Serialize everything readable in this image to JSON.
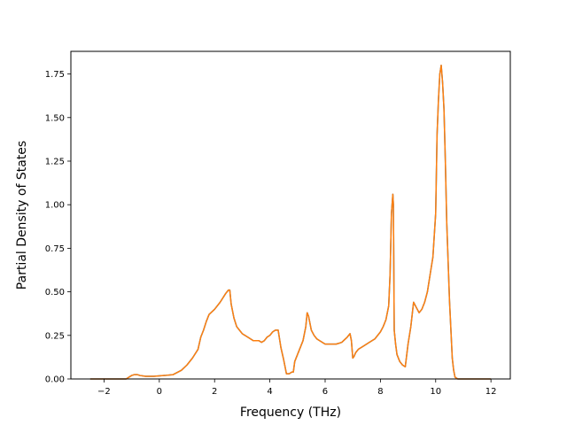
{
  "chart_data": {
    "type": "line",
    "title": "",
    "xlabel": "Frequency (THz)",
    "ylabel": "Partial Density of States",
    "xlim": [
      -3.2,
      12.7
    ],
    "ylim": [
      0,
      1.88
    ],
    "grid": false,
    "legend": "none",
    "x_ticks": [
      -2,
      0,
      2,
      4,
      6,
      8,
      10,
      12
    ],
    "x_tick_labels": [
      "−2",
      "0",
      "2",
      "4",
      "6",
      "8",
      "10",
      "12"
    ],
    "y_ticks": [
      0,
      0.25,
      0.5,
      0.75,
      1.0,
      1.25,
      1.5,
      1.75
    ],
    "y_tick_labels": [
      "0.00",
      "0.25",
      "0.50",
      "0.75",
      "1.00",
      "1.25",
      "1.50",
      "1.75"
    ],
    "series": [
      {
        "color": "#1f77b4",
        "x": [
          -2.5,
          -1.2,
          -1.1,
          -1.0,
          -0.9,
          -0.8,
          -0.7,
          -0.5,
          -0.2,
          0.2,
          0.5,
          0.8,
          1.0,
          1.2,
          1.4,
          1.5,
          1.6,
          1.7,
          1.8,
          2.0,
          2.2,
          2.4,
          2.5,
          2.55,
          2.6,
          2.7,
          2.8,
          2.9,
          3.0,
          3.2,
          3.4,
          3.6,
          3.7,
          3.8,
          3.9,
          4.0,
          4.1,
          4.2,
          4.3,
          4.4,
          4.5,
          4.6,
          4.7,
          4.8,
          4.85,
          4.9,
          5.0,
          5.1,
          5.2,
          5.3,
          5.35,
          5.4,
          5.5,
          5.6,
          5.7,
          5.8,
          6.0,
          6.2,
          6.4,
          6.6,
          6.8,
          6.9,
          6.95,
          7.0,
          7.05,
          7.1,
          7.2,
          7.4,
          7.6,
          7.8,
          8.0,
          8.1,
          8.2,
          8.3,
          8.35,
          8.4,
          8.45,
          8.47,
          8.5,
          8.55,
          8.6,
          8.7,
          8.8,
          8.9,
          9.0,
          9.1,
          9.2,
          9.3,
          9.4,
          9.5,
          9.6,
          9.7,
          9.8,
          9.9,
          10.0,
          10.05,
          10.1,
          10.15,
          10.2,
          10.25,
          10.3,
          10.35,
          10.4,
          10.5,
          10.6,
          10.65,
          10.7,
          10.8,
          11.0,
          11.5,
          12.0
        ],
        "y": [
          0,
          0,
          0.01,
          0.02,
          0.025,
          0.025,
          0.02,
          0.015,
          0.015,
          0.02,
          0.025,
          0.05,
          0.08,
          0.12,
          0.17,
          0.24,
          0.28,
          0.33,
          0.37,
          0.4,
          0.44,
          0.49,
          0.51,
          0.51,
          0.43,
          0.35,
          0.3,
          0.28,
          0.26,
          0.24,
          0.22,
          0.22,
          0.21,
          0.22,
          0.24,
          0.25,
          0.27,
          0.28,
          0.28,
          0.18,
          0.11,
          0.03,
          0.03,
          0.04,
          0.04,
          0.1,
          0.14,
          0.18,
          0.22,
          0.3,
          0.38,
          0.36,
          0.28,
          0.25,
          0.23,
          0.22,
          0.2,
          0.2,
          0.2,
          0.21,
          0.24,
          0.26,
          0.22,
          0.12,
          0.13,
          0.15,
          0.17,
          0.19,
          0.21,
          0.23,
          0.27,
          0.3,
          0.34,
          0.42,
          0.6,
          0.95,
          1.06,
          1.0,
          0.28,
          0.2,
          0.14,
          0.1,
          0.08,
          0.07,
          0.2,
          0.3,
          0.44,
          0.41,
          0.38,
          0.4,
          0.44,
          0.5,
          0.6,
          0.7,
          0.95,
          1.4,
          1.6,
          1.75,
          1.8,
          1.7,
          1.55,
          1.25,
          0.9,
          0.45,
          0.12,
          0.05,
          0.01,
          0,
          0,
          0,
          0
        ]
      },
      {
        "color": "#ff7f0e",
        "x": [
          -2.5,
          -1.2,
          -1.1,
          -1.0,
          -0.9,
          -0.8,
          -0.7,
          -0.5,
          -0.2,
          0.2,
          0.5,
          0.8,
          1.0,
          1.2,
          1.4,
          1.5,
          1.6,
          1.7,
          1.8,
          2.0,
          2.2,
          2.4,
          2.5,
          2.55,
          2.6,
          2.7,
          2.8,
          2.9,
          3.0,
          3.2,
          3.4,
          3.6,
          3.7,
          3.8,
          3.9,
          4.0,
          4.1,
          4.2,
          4.3,
          4.4,
          4.5,
          4.6,
          4.7,
          4.8,
          4.85,
          4.9,
          5.0,
          5.1,
          5.2,
          5.3,
          5.35,
          5.4,
          5.5,
          5.6,
          5.7,
          5.8,
          6.0,
          6.2,
          6.4,
          6.6,
          6.8,
          6.9,
          6.95,
          7.0,
          7.05,
          7.1,
          7.2,
          7.4,
          7.6,
          7.8,
          8.0,
          8.1,
          8.2,
          8.3,
          8.35,
          8.4,
          8.45,
          8.47,
          8.5,
          8.55,
          8.6,
          8.7,
          8.8,
          8.9,
          9.0,
          9.1,
          9.2,
          9.3,
          9.4,
          9.5,
          9.6,
          9.7,
          9.8,
          9.9,
          10.0,
          10.05,
          10.1,
          10.15,
          10.2,
          10.25,
          10.3,
          10.35,
          10.4,
          10.5,
          10.6,
          10.65,
          10.7,
          10.8,
          11.0,
          11.5,
          12.0
        ],
        "y": [
          0,
          0,
          0.01,
          0.02,
          0.025,
          0.025,
          0.02,
          0.015,
          0.015,
          0.02,
          0.025,
          0.05,
          0.08,
          0.12,
          0.17,
          0.24,
          0.28,
          0.33,
          0.37,
          0.4,
          0.44,
          0.49,
          0.51,
          0.51,
          0.43,
          0.35,
          0.3,
          0.28,
          0.26,
          0.24,
          0.22,
          0.22,
          0.21,
          0.22,
          0.24,
          0.25,
          0.27,
          0.28,
          0.28,
          0.18,
          0.11,
          0.03,
          0.03,
          0.04,
          0.04,
          0.1,
          0.14,
          0.18,
          0.22,
          0.3,
          0.38,
          0.36,
          0.28,
          0.25,
          0.23,
          0.22,
          0.2,
          0.2,
          0.2,
          0.21,
          0.24,
          0.26,
          0.22,
          0.12,
          0.13,
          0.15,
          0.17,
          0.19,
          0.21,
          0.23,
          0.27,
          0.3,
          0.34,
          0.42,
          0.6,
          0.95,
          1.06,
          1.0,
          0.28,
          0.2,
          0.14,
          0.1,
          0.08,
          0.07,
          0.2,
          0.3,
          0.44,
          0.41,
          0.38,
          0.4,
          0.44,
          0.5,
          0.6,
          0.7,
          0.95,
          1.4,
          1.6,
          1.75,
          1.8,
          1.7,
          1.55,
          1.25,
          0.9,
          0.45,
          0.12,
          0.05,
          0.01,
          0,
          0,
          0,
          0
        ]
      }
    ]
  }
}
